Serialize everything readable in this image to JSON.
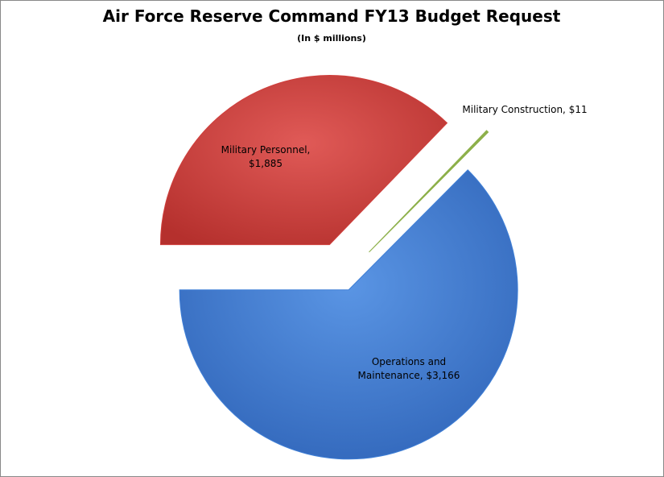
{
  "chart_data": {
    "type": "pie",
    "title": "Air Force Reserve Command FY13 Budget Request",
    "subtitle": "(In $ millions)",
    "categories": [
      "Military Personnel,",
      "Military Construction,",
      "Operations and Maintenance,"
    ],
    "values": [
      1885,
      11,
      3166
    ],
    "value_labels": [
      "$1,885",
      "$11",
      "$3,166"
    ],
    "colors": [
      "#cf3f3c",
      "#8db04a",
      "#3f7fd6"
    ]
  }
}
